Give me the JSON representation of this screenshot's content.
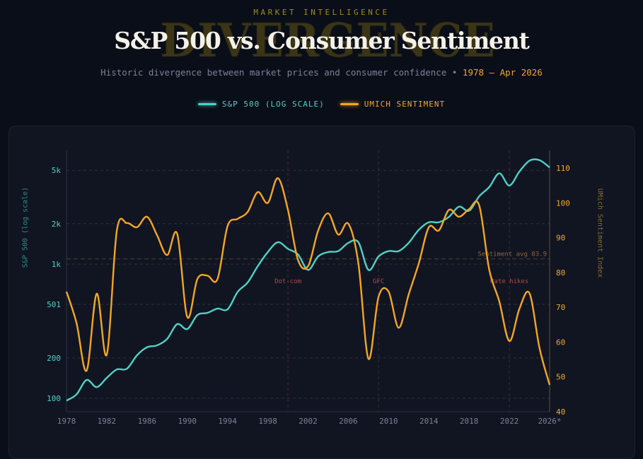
{
  "header": {
    "kicker": "MARKET INTELLIGENCE",
    "watermark": "DIVERGENCE",
    "title": "S&P 500 vs. Consumer Sentiment",
    "subtitle": "Historic divergence between market prices and consumer confidence • ",
    "date_range": "1978 – Apr 2026"
  },
  "legend": [
    {
      "label": "S&P 500 (LOG SCALE)",
      "color": "#4fd1c5"
    },
    {
      "label": "UMICH SENTIMENT",
      "color": "#f5a623"
    }
  ],
  "chart_data": {
    "type": "line",
    "x": [
      1978,
      1979,
      1980,
      1981,
      1982,
      1983,
      1984,
      1985,
      1986,
      1987,
      1988,
      1989,
      1990,
      1991,
      1992,
      1993,
      1994,
      1995,
      1996,
      1997,
      1998,
      1999,
      2000,
      2001,
      2002,
      2003,
      2004,
      2005,
      2006,
      2007,
      2008,
      2009,
      2010,
      2011,
      2012,
      2013,
      2014,
      2015,
      2016,
      2017,
      2018,
      2019,
      2020,
      2021,
      2022,
      2023,
      2024,
      2025,
      2026
    ],
    "series": [
      {
        "name": "S&P 500 (log scale)",
        "axis": "left",
        "color": "#4fd1c5",
        "values": [
          96,
          107,
          137,
          121,
          142,
          164,
          166,
          209,
          240,
          248,
          277,
          357,
          328,
          417,
          433,
          466,
          460,
          620,
          730,
          965,
          1230,
          1455,
          1300,
          1180,
          905,
          1140,
          1230,
          1250,
          1440,
          1455,
          905,
          1140,
          1250,
          1250,
          1440,
          1800,
          2050,
          2050,
          2250,
          2680,
          2500,
          3200,
          3750,
          4750,
          3850,
          4900,
          5900,
          5950,
          5250
        ]
      },
      {
        "name": "UMich Sentiment",
        "axis": "right",
        "color": "#f5a623",
        "values": [
          74.5,
          65.4,
          51.8,
          73.9,
          56.4,
          92,
          94.2,
          93,
          96,
          90.7,
          85,
          91.1,
          67.2,
          78.1,
          79.1,
          78.1,
          93.3,
          95.4,
          97.4,
          103.1,
          100,
          107.1,
          98,
          83.6,
          81.8,
          92,
          97,
          90.9,
          94,
          82.6,
          55.2,
          73,
          74.5,
          64.1,
          73.7,
          82.6,
          93,
          92.1,
          98,
          96,
          98.2,
          99.3,
          80.8,
          71.7,
          60.3,
          69.6,
          74,
          58.2,
          47.7
        ]
      }
    ],
    "x_ticks": [
      "1978",
      "1982",
      "1986",
      "1990",
      "1994",
      "1998",
      "2002",
      "2006",
      "2010",
      "2014",
      "2018",
      "2022",
      "2026*"
    ],
    "x_tick_values": [
      1978,
      1982,
      1986,
      1990,
      1994,
      1998,
      2002,
      2006,
      2010,
      2014,
      2018,
      2022,
      2026
    ],
    "xlim": [
      1978,
      2026
    ],
    "left_axis": {
      "label": "S&P 500 (log scale)",
      "scale": "log",
      "ticks": [
        "5k",
        "2k",
        "1k",
        "501",
        "200",
        "100"
      ],
      "tick_values": [
        5000,
        2000,
        1000,
        501,
        200,
        100
      ]
    },
    "right_axis": {
      "label": "UMich Sentiment Index",
      "ticks": [
        "40",
        "50",
        "60",
        "70",
        "80",
        "90",
        "100",
        "110"
      ],
      "tick_values": [
        40,
        50,
        60,
        70,
        80,
        90,
        100,
        110
      ],
      "ylim": [
        40,
        110
      ]
    },
    "reference_line": {
      "label": "Sentiment avg 83.9",
      "value": 83.9
    },
    "events": [
      {
        "label": "Dot-com",
        "year": 2000
      },
      {
        "label": "GFC",
        "year": 2009
      },
      {
        "label": "Rate hikes",
        "year": 2022
      }
    ],
    "grid": true
  }
}
